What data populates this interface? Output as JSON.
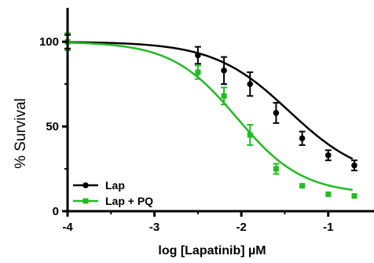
{
  "chart_data": {
    "type": "scatter",
    "xlabel": "log [Lapatinib] µM",
    "ylabel": "% Survival",
    "xlim": [
      -4,
      -0.6
    ],
    "ylim": [
      0,
      120
    ],
    "xticks": [
      -4,
      -3,
      -2,
      -1
    ],
    "xtick_labels": [
      "-4",
      "-3",
      "-2",
      "-1"
    ],
    "yticks": [
      0,
      50,
      100
    ],
    "ytick_labels": [
      "0",
      "50",
      "100"
    ],
    "legend_position": "bottom-left",
    "series": [
      {
        "name": "Lap",
        "color": "#000000",
        "marker": "circle",
        "x": [
          -4,
          -2.5,
          -2.2,
          -1.9,
          -1.6,
          -1.3,
          -1.0,
          -0.7
        ],
        "y": [
          100,
          92,
          83,
          75,
          58,
          43,
          33,
          27
        ],
        "err": [
          4,
          5,
          8,
          7,
          6,
          4,
          3,
          3
        ],
        "fit": {
          "top": 100,
          "bottom": 18,
          "logIC50": -1.45,
          "hill": 1.0
        }
      },
      {
        "name": "Lap + PQ",
        "color": "#22bb22",
        "marker": "square",
        "x": [
          -4,
          -2.5,
          -2.2,
          -1.9,
          -1.6,
          -1.3,
          -1.0,
          -0.7
        ],
        "y": [
          100,
          82,
          68,
          45,
          25,
          15,
          10,
          9
        ],
        "err": [
          5,
          4,
          5,
          6,
          3,
          1,
          1,
          1
        ],
        "fit": {
          "top": 100,
          "bottom": 10,
          "logIC50": -2.05,
          "hill": 1.15
        }
      }
    ]
  }
}
